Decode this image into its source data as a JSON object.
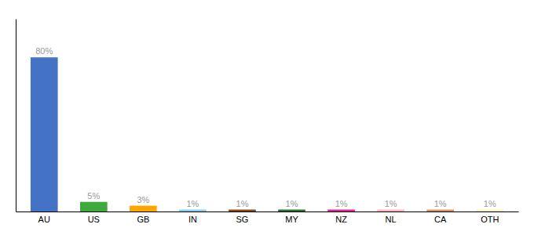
{
  "chart_data": {
    "type": "bar",
    "categories": [
      "AU",
      "US",
      "GB",
      "IN",
      "SG",
      "MY",
      "NZ",
      "NL",
      "CA",
      "OTH"
    ],
    "values": [
      80,
      5,
      3,
      1,
      1,
      1,
      1,
      1,
      1,
      1
    ],
    "value_labels": [
      "80%",
      "5%",
      "3%",
      "1%",
      "1%",
      "1%",
      "1%",
      "1%",
      "1%",
      "1%"
    ],
    "data_labels": true,
    "colors": [
      "#4472C4",
      "#3DAA3D",
      "#FFA500",
      "#87CEEB",
      "#8B4513",
      "#2E6B2E",
      "#E91E8C",
      "#FFB6C1",
      "#D2936B",
      "#F5F0C8"
    ],
    "ylim": [
      0,
      100
    ],
    "grid": false,
    "tick_labels": "x"
  }
}
